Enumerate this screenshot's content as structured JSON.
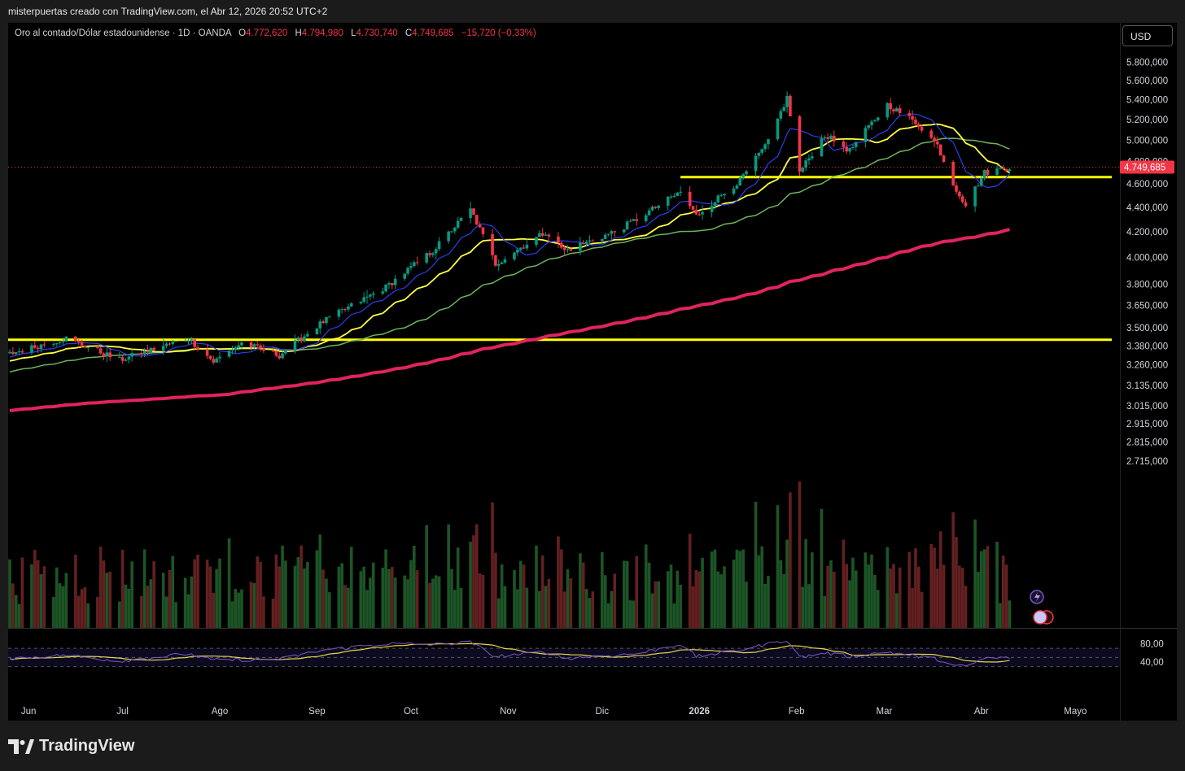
{
  "header": {
    "caption": "misterpuertas creado con TradingView.com, el Abr 12, 2026 20:52 UTC+2"
  },
  "legend": {
    "symbol": "Oro al contado/Dólar estadounidense · 1D · OANDA",
    "open_label": "O",
    "open": "4.772,620",
    "high_label": "H",
    "high": "4.794,980",
    "low_label": "L",
    "low": "4.730,740",
    "close_label": "C",
    "close": "4.749,685",
    "change": "−15,720 (−0,33%)"
  },
  "currency_button": "USD",
  "price_badge": "4.749,685",
  "footer": {
    "brand": "TradingView"
  },
  "colors": {
    "up": "#089981",
    "down": "#f23645",
    "sma_fast": "#2c3ff0",
    "sma_mid": "#ffff40",
    "sma_slow": "#6fb35b",
    "sma_long": "#e0245e",
    "hline": "#ffff00",
    "rsi": "#7e57c2",
    "rsi_ma": "#e8d44d"
  },
  "chart_data": [
    {
      "type": "candlestick",
      "x_axis": {
        "ticks": [
          "Jun",
          "Jul",
          "Ago",
          "Sep",
          "Oct",
          "Nov",
          "Dic",
          "2026",
          "Feb",
          "Mar",
          "Abr",
          "Mayo"
        ]
      },
      "y_axis": {
        "scale": "log",
        "ticks": [
          "5.800,000",
          "5.600,000",
          "5.400,000",
          "5.200,000",
          "5.000,000",
          "4.800,000",
          "4.600,000",
          "4.400,000",
          "4.200,000",
          "4.000,000",
          "3.800,000",
          "3.650,000",
          "3.500,000",
          "3.380,000",
          "3.260,000",
          "3.135,000",
          "3.015,000",
          "2.915,000",
          "2.815,000",
          "2.715,000"
        ],
        "range": [
          2670,
          6000
        ]
      },
      "last_price": 4749.685,
      "horizontal_lines": [
        {
          "price": 4660,
          "from": "2025-12-26",
          "to": "right-edge"
        },
        {
          "price": 3420,
          "from": "left-edge",
          "to": "right-edge"
        }
      ],
      "price_keypoints": [
        [
          "2025-05-26",
          3330
        ],
        [
          "2025-06-13",
          3430
        ],
        [
          "2025-06-30",
          3290
        ],
        [
          "2025-07-22",
          3430
        ],
        [
          "2025-07-30",
          3280
        ],
        [
          "2025-08-08",
          3400
        ],
        [
          "2025-08-20",
          3320
        ],
        [
          "2025-09-03",
          3540
        ],
        [
          "2025-09-23",
          3780
        ],
        [
          "2025-10-08",
          4050
        ],
        [
          "2025-10-20",
          4380
        ],
        [
          "2025-10-28",
          3950
        ],
        [
          "2025-11-13",
          4200
        ],
        [
          "2025-11-19",
          4050
        ],
        [
          "2025-12-05",
          4200
        ],
        [
          "2025-12-12",
          4300
        ],
        [
          "2025-12-26",
          4530
        ],
        [
          "2025-12-31",
          4330
        ],
        [
          "2026-01-14",
          4630
        ],
        [
          "2026-01-23",
          4980
        ],
        [
          "2026-01-29",
          5420
        ],
        [
          "2026-02-02",
          4700
        ],
        [
          "2026-02-10",
          5050
        ],
        [
          "2026-02-18",
          4900
        ],
        [
          "2026-03-02",
          5350
        ],
        [
          "2026-03-12",
          5150
        ],
        [
          "2026-03-18",
          4950
        ],
        [
          "2026-03-23",
          4600
        ],
        [
          "2026-03-27",
          4420
        ],
        [
          "2026-04-02",
          4700
        ],
        [
          "2026-04-10",
          4750
        ]
      ],
      "moving_averages": [
        "fast (blue)",
        "medium (yellow)",
        "slow (green)",
        "long (red)"
      ]
    },
    {
      "type": "line",
      "name": "RSI",
      "y_axis": {
        "ticks": [
          "80,00",
          "40,00"
        ],
        "range": [
          20,
          100
        ],
        "bands": [
          30,
          50,
          70
        ]
      },
      "rsi_keypoints": [
        [
          "2025-05-26",
          48
        ],
        [
          "2025-06-13",
          55
        ],
        [
          "2025-06-30",
          42
        ],
        [
          "2025-07-22",
          58
        ],
        [
          "2025-07-30",
          44
        ],
        [
          "2025-08-20",
          46
        ],
        [
          "2025-09-03",
          66
        ],
        [
          "2025-09-23",
          80
        ],
        [
          "2025-10-08",
          78
        ],
        [
          "2025-10-20",
          83
        ],
        [
          "2025-10-28",
          52
        ],
        [
          "2025-11-13",
          62
        ],
        [
          "2025-11-19",
          48
        ],
        [
          "2025-12-12",
          58
        ],
        [
          "2025-12-26",
          79
        ],
        [
          "2025-12-31",
          52
        ],
        [
          "2026-01-14",
          66
        ],
        [
          "2026-01-29",
          88
        ],
        [
          "2026-02-02",
          50
        ],
        [
          "2026-02-10",
          60
        ],
        [
          "2026-02-18",
          52
        ],
        [
          "2026-03-02",
          62
        ],
        [
          "2026-03-18",
          46
        ],
        [
          "2026-03-23",
          32
        ],
        [
          "2026-03-27",
          30
        ],
        [
          "2026-04-02",
          48
        ],
        [
          "2026-04-10",
          50
        ]
      ]
    }
  ]
}
